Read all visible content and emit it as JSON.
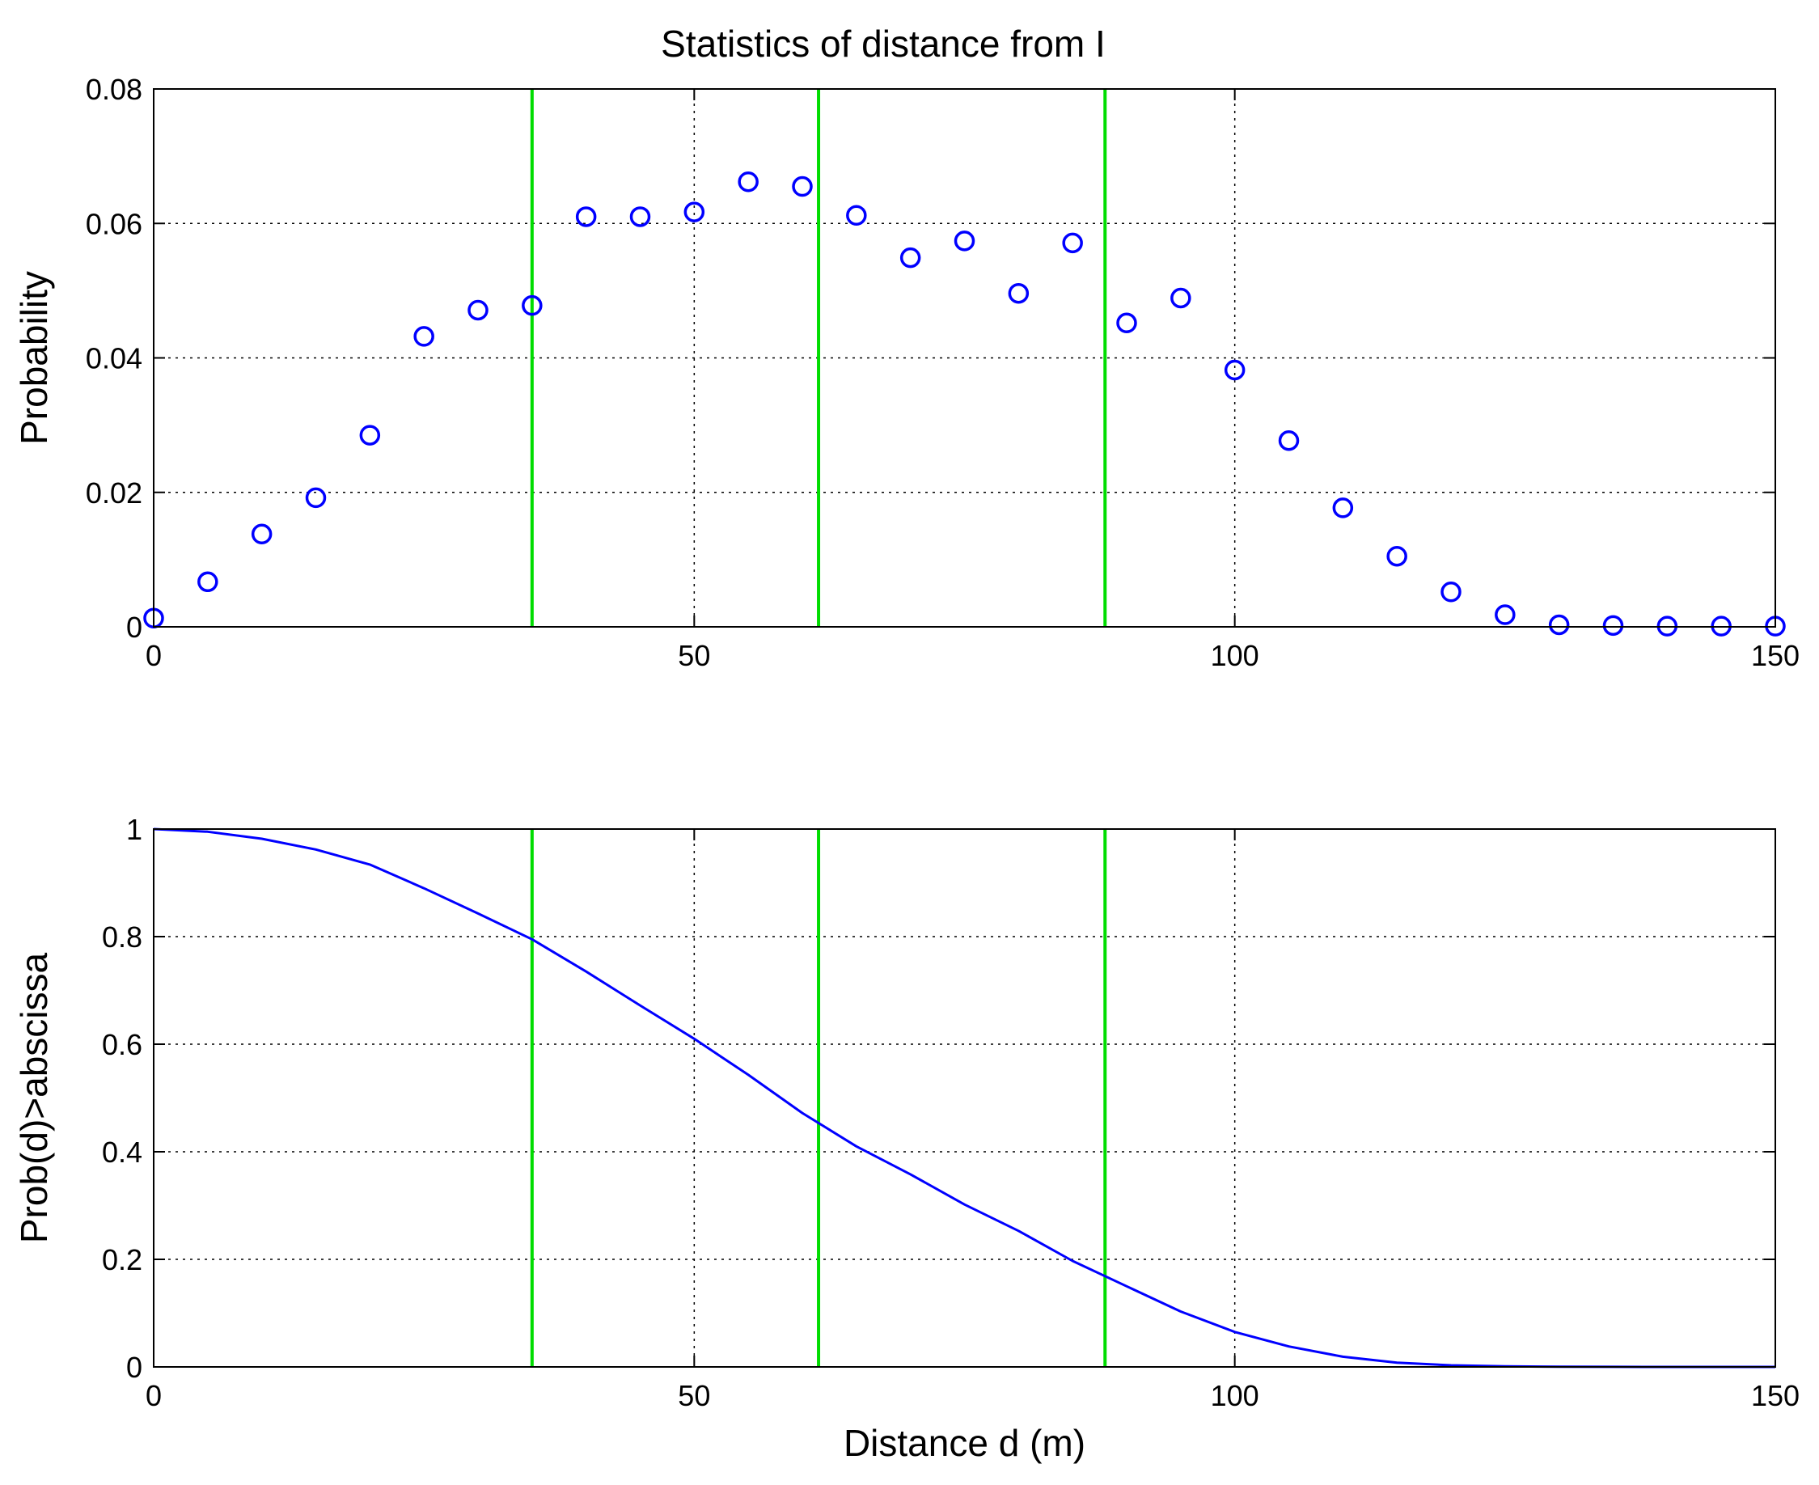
{
  "title": "Statistics of distance from I",
  "chart_data": [
    {
      "type": "scatter",
      "title": "Statistics of distance from I",
      "xlabel": "",
      "ylabel": "Probability",
      "xlim": [
        0,
        150
      ],
      "ylim": [
        0,
        0.08
      ],
      "xticks": [
        "0",
        "50",
        "100",
        "150"
      ],
      "yticks": [
        "0",
        "0.02",
        "0.04",
        "0.06",
        "0.08"
      ],
      "grid": true,
      "marker": "circle",
      "series_color": "#0000ff",
      "vlines_color": "#00dd00",
      "vlines": [
        35,
        61.5,
        88
      ],
      "x": [
        0,
        5,
        10,
        15,
        20,
        25,
        30,
        35,
        40,
        45,
        50,
        55,
        60,
        65,
        70,
        75,
        80,
        85,
        90,
        95,
        100,
        105,
        110,
        115,
        120,
        125,
        130,
        135,
        140,
        145,
        150
      ],
      "y": [
        0.0013,
        0.0067,
        0.0138,
        0.0192,
        0.0285,
        0.0432,
        0.0471,
        0.0478,
        0.061,
        0.061,
        0.0617,
        0.0662,
        0.0655,
        0.0612,
        0.0549,
        0.0574,
        0.0496,
        0.0571,
        0.0452,
        0.0489,
        0.0382,
        0.0277,
        0.0177,
        0.0105,
        0.0052,
        0.0018,
        0.0003,
        0.0002,
        0.0001,
        0.0001,
        0.0001
      ]
    },
    {
      "type": "line",
      "title": "",
      "xlabel": "Distance d (m)",
      "ylabel": "Prob(d)>abscissa",
      "xlim": [
        0,
        150
      ],
      "ylim": [
        0,
        1
      ],
      "xticks": [
        "0",
        "50",
        "100",
        "150"
      ],
      "yticks": [
        "0",
        "0.2",
        "0.4",
        "0.6",
        "0.8",
        "1"
      ],
      "grid": true,
      "series_color": "#0000ff",
      "vlines_color": "#00dd00",
      "vlines": [
        35,
        61.5,
        88
      ],
      "x": [
        0,
        5,
        10,
        15,
        20,
        25,
        30,
        35,
        40,
        45,
        50,
        55,
        60,
        65,
        70,
        75,
        80,
        85,
        90,
        95,
        100,
        105,
        110,
        115,
        120,
        125,
        130,
        135,
        140,
        145,
        150
      ],
      "y": [
        1.0,
        0.995,
        0.982,
        0.962,
        0.934,
        0.89,
        0.843,
        0.795,
        0.735,
        0.672,
        0.61,
        0.543,
        0.472,
        0.41,
        0.358,
        0.302,
        0.253,
        0.197,
        0.15,
        0.103,
        0.065,
        0.038,
        0.019,
        0.008,
        0.003,
        0.001,
        0.0003,
        0.0001,
        0.0,
        0.0,
        0.0
      ]
    }
  ]
}
